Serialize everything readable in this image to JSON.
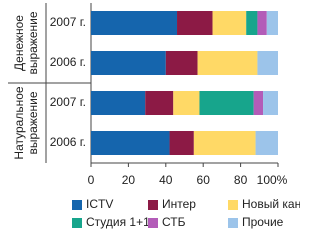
{
  "chart_data": {
    "type": "stacked-bar-horizontal",
    "groups": [
      {
        "lines": [
          "Денежное",
          "выражение"
        ],
        "categories": [
          "2007 г.",
          "2006 г."
        ]
      },
      {
        "lines": [
          "Натуральное",
          "выражение"
        ],
        "categories": [
          "2007 г.",
          "2006 г."
        ]
      }
    ],
    "series": [
      {
        "name": "ICTV",
        "color": "#1565ad",
        "values": [
          46,
          40,
          29,
          42
        ]
      },
      {
        "name": "Интер",
        "color": "#8c1a45",
        "values": [
          19,
          17,
          15,
          13
        ]
      },
      {
        "name": "Новый канал",
        "color": "#ffd966",
        "values": [
          18,
          32,
          14,
          33
        ]
      },
      {
        "name": "Студия 1+1",
        "color": "#17a58c",
        "values": [
          6,
          0,
          29,
          0
        ]
      },
      {
        "name": "СТБ",
        "color": "#b35cb8",
        "values": [
          5,
          0,
          5,
          0
        ]
      },
      {
        "name": "Прочие",
        "color": "#9cc4ea",
        "values": [
          6,
          11,
          8,
          12
        ]
      }
    ],
    "xlim": [
      0,
      100
    ],
    "xticks": [
      0,
      20,
      40,
      60,
      80,
      {
        "value": 100,
        "label": "100%"
      }
    ]
  }
}
